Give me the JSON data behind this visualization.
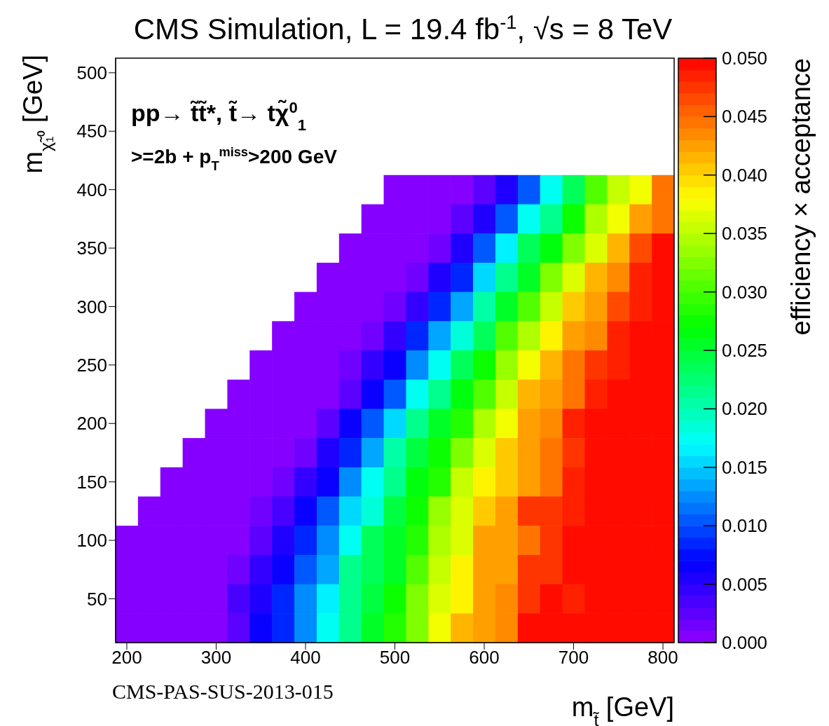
{
  "chart_data": {
    "type": "heatmap",
    "title": "CMS Simulation, L = 19.4 fb$^{-1}$, √s = 8 TeV",
    "xlabel": "m$_{t̃}$ [GeV]",
    "ylabel": "m$_{χ̃₁⁰}$ [GeV]",
    "clabel": "efficiency × acceptance",
    "annotations": [
      "pp→ t̃t̃*, t̃→ tχ̃$^{0}$$_{1}$",
      ">=2b + p$_{T}$$^{miss}$>200 GeV",
      "CMS-PAS-SUS-2013-015"
    ],
    "x": [
      200,
      225,
      250,
      275,
      300,
      325,
      350,
      375,
      400,
      425,
      450,
      475,
      500,
      525,
      550,
      575,
      600,
      625,
      650,
      675,
      700,
      725,
      750,
      775,
      800
    ],
    "y": [
      400,
      375,
      350,
      325,
      300,
      275,
      250,
      225,
      200,
      175,
      150,
      125,
      100,
      75,
      50,
      25
    ],
    "xlim": [
      187.5,
      812.5
    ],
    "ylim": [
      12.5,
      512.5
    ],
    "xticks": [
      200,
      300,
      400,
      500,
      600,
      700,
      800
    ],
    "yticks": [
      50,
      100,
      150,
      200,
      250,
      300,
      350,
      400,
      450,
      500
    ],
    "clim": [
      0,
      0.05
    ],
    "cticks": [
      {
        "value": 0,
        "label": "0.000"
      },
      {
        "value": 0.005,
        "label": "0.005"
      },
      {
        "value": 0.01,
        "label": "0.010"
      },
      {
        "value": 0.015,
        "label": "0.015"
      },
      {
        "value": 0.02,
        "label": "0.020"
      },
      {
        "value": 0.025,
        "label": "0.025"
      },
      {
        "value": 0.03,
        "label": "0.030"
      },
      {
        "value": 0.035,
        "label": "0.035"
      },
      {
        "value": 0.04,
        "label": "0.040"
      },
      {
        "value": 0.045,
        "label": "0.045"
      },
      {
        "value": 0.05,
        "label": "0.050"
      }
    ],
    "cells": [
      [
        null,
        null,
        null,
        null,
        null,
        null,
        null,
        null,
        null,
        null,
        null,
        null,
        0,
        0,
        0,
        0,
        0.002,
        0.005,
        0.011,
        0.017,
        0.023,
        0.03,
        0.036,
        0.038,
        0.045
      ],
      [
        null,
        null,
        null,
        null,
        null,
        null,
        null,
        null,
        null,
        null,
        null,
        0,
        0,
        0,
        0,
        0.002,
        0.005,
        0.01,
        0.017,
        0.022,
        0.028,
        0.034,
        0.038,
        0.043,
        0.045
      ],
      [
        null,
        null,
        null,
        null,
        null,
        null,
        null,
        null,
        null,
        null,
        0,
        0,
        0,
        0,
        0.001,
        0.005,
        0.01,
        0.016,
        0.023,
        0.027,
        0.032,
        0.037,
        0.041,
        0.046,
        0.049
      ],
      [
        null,
        null,
        null,
        null,
        null,
        null,
        null,
        null,
        null,
        0,
        0,
        0,
        0,
        0.001,
        0.005,
        0.009,
        0.015,
        0.021,
        0.026,
        0.032,
        0.037,
        0.041,
        0.044,
        0.048,
        0.049
      ],
      [
        null,
        null,
        null,
        null,
        null,
        null,
        null,
        null,
        0,
        0,
        0,
        0,
        0.001,
        0.004,
        0.008,
        0.014,
        0.02,
        0.025,
        0.03,
        0.036,
        0.04,
        0.043,
        0.046,
        0.048,
        0.05
      ],
      [
        null,
        null,
        null,
        null,
        null,
        null,
        null,
        0,
        0,
        0,
        0,
        0.001,
        0.004,
        0.008,
        0.014,
        0.019,
        0.023,
        0.03,
        0.034,
        0.039,
        0.042,
        0.044,
        0.048,
        0.049,
        0.05
      ],
      [
        null,
        null,
        null,
        null,
        null,
        null,
        0,
        0,
        0,
        0,
        0.001,
        0.004,
        0.007,
        0.012,
        0.018,
        0.023,
        0.028,
        0.033,
        0.038,
        0.041,
        0.045,
        0.047,
        0.048,
        0.05,
        0.05
      ],
      [
        null,
        null,
        null,
        null,
        null,
        0,
        0,
        0,
        0,
        0,
        0.002,
        0.007,
        0.011,
        0.017,
        0.022,
        0.027,
        0.03,
        0.036,
        0.041,
        0.042,
        0.045,
        0.048,
        0.049,
        0.05,
        0.05
      ],
      [
        null,
        null,
        null,
        null,
        0,
        0,
        0,
        0,
        0,
        0.002,
        0.006,
        0.01,
        0.015,
        0.021,
        0.025,
        0.029,
        0.034,
        0.038,
        0.042,
        0.044,
        0.048,
        0.049,
        0.05,
        0.05,
        0.05
      ],
      [
        null,
        null,
        null,
        0,
        0,
        0,
        0,
        0,
        0.001,
        0.005,
        0.009,
        0.014,
        0.02,
        0.024,
        0.028,
        0.032,
        0.037,
        0.04,
        0.043,
        0.045,
        0.047,
        0.049,
        0.05,
        0.05,
        0.05
      ],
      [
        null,
        null,
        0,
        0,
        0,
        0,
        0,
        0.001,
        0.004,
        0.007,
        0.012,
        0.017,
        0.022,
        0.027,
        0.029,
        0.036,
        0.039,
        0.04,
        0.043,
        0.045,
        0.048,
        0.049,
        0.05,
        0.05,
        0.05
      ],
      [
        null,
        0,
        0,
        0,
        0,
        0,
        0.001,
        0.003,
        0.006,
        0.01,
        0.015,
        0.019,
        0.024,
        0.028,
        0.033,
        0.037,
        0.04,
        0.042,
        0.047,
        0.047,
        0.048,
        0.049,
        0.05,
        0.05,
        0.05
      ],
      [
        0,
        0,
        0,
        0,
        0,
        0,
        0.002,
        0.005,
        0.008,
        0.013,
        0.018,
        0.023,
        0.026,
        0.029,
        0.034,
        0.037,
        0.042,
        0.042,
        0.045,
        0.047,
        0.049,
        0.049,
        0.05,
        0.05,
        0.05
      ],
      [
        0,
        0,
        0,
        0,
        0,
        0.001,
        0.004,
        0.007,
        0.011,
        0.014,
        0.021,
        0.023,
        0.026,
        0.03,
        0.036,
        0.039,
        0.042,
        0.043,
        0.047,
        0.047,
        0.049,
        0.05,
        0.05,
        0.05,
        0.05
      ],
      [
        0,
        0,
        0,
        0,
        0,
        0.003,
        0.005,
        0.008,
        0.012,
        0.016,
        0.021,
        0.024,
        0.028,
        0.032,
        0.037,
        0.039,
        0.042,
        0.044,
        0.047,
        0.049,
        0.048,
        0.05,
        0.05,
        0.05,
        0.05
      ],
      [
        0,
        0,
        0,
        0,
        0,
        0.002,
        0.006,
        0.009,
        0.013,
        0.017,
        0.021,
        0.025,
        0.029,
        0.032,
        0.038,
        0.041,
        0.042,
        0.044,
        0.049,
        0.049,
        0.05,
        0.05,
        0.05,
        0.05,
        0.05
      ]
    ]
  }
}
